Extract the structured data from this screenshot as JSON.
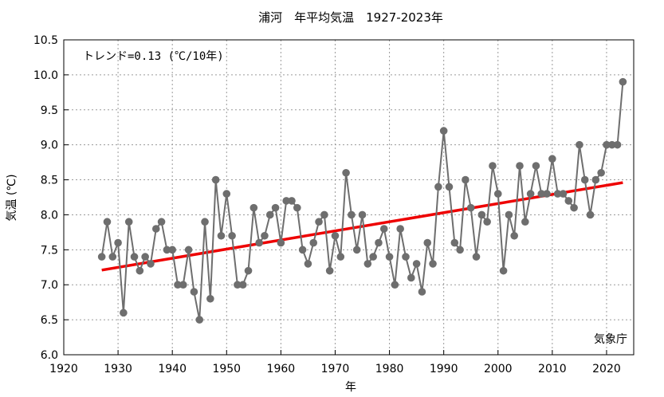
{
  "chart_data": {
    "type": "line",
    "title": "浦河　年平均気温　1927-2023年",
    "xlabel": "年",
    "ylabel": "気温 (℃)",
    "xlim": [
      1920,
      2025
    ],
    "ylim": [
      6.0,
      10.5
    ],
    "xticks": [
      1920,
      1930,
      1940,
      1950,
      1960,
      1970,
      1980,
      1990,
      2000,
      2010,
      2020
    ],
    "yticks": [
      "6.0",
      "6.5",
      "7.0",
      "7.5",
      "8.0",
      "8.5",
      "9.0",
      "9.5",
      "10.0",
      "10.5"
    ],
    "grid": true,
    "annotation": "トレンド=0.13 (℃/10年)",
    "source": "気象庁",
    "colors": {
      "series": "#6e6e6e",
      "trend": "#ee0000"
    },
    "series": [
      {
        "x": [
          1927,
          1928,
          1929,
          1930,
          1931,
          1932,
          1933,
          1934,
          1935,
          1936,
          1937,
          1938,
          1939,
          1940,
          1941,
          1942,
          1943,
          1944,
          1945,
          1946,
          1947,
          1948,
          1949,
          1950,
          1951,
          1952,
          1953,
          1954,
          1955,
          1956,
          1957,
          1958,
          1959,
          1960,
          1961,
          1962,
          1963,
          1964,
          1965,
          1966,
          1967,
          1968,
          1969,
          1970,
          1971,
          1972,
          1973,
          1974,
          1975,
          1976,
          1977,
          1978,
          1979,
          1980,
          1981,
          1982,
          1983,
          1984,
          1985,
          1986,
          1987,
          1988,
          1989,
          1990,
          1991,
          1992,
          1993,
          1994,
          1995,
          1996,
          1997,
          1998,
          1999,
          2000,
          2001,
          2002,
          2003,
          2004,
          2005,
          2006,
          2007,
          2008,
          2009,
          2010,
          2011,
          2012,
          2013,
          2014,
          2015,
          2016,
          2017,
          2018,
          2019,
          2020,
          2021,
          2022,
          2023
        ],
        "values": [
          7.4,
          7.9,
          7.4,
          7.6,
          6.6,
          7.9,
          7.4,
          7.2,
          7.4,
          7.3,
          7.8,
          7.9,
          7.5,
          7.5,
          7.0,
          7.0,
          7.5,
          6.9,
          6.5,
          7.9,
          6.8,
          8.5,
          7.7,
          8.3,
          7.7,
          7.0,
          7.0,
          7.2,
          8.1,
          7.6,
          7.7,
          8.0,
          8.1,
          7.6,
          8.2,
          8.2,
          8.1,
          7.5,
          7.3,
          7.6,
          7.9,
          8.0,
          7.2,
          7.7,
          7.4,
          8.6,
          8.0,
          7.5,
          8.0,
          7.3,
          7.4,
          7.6,
          7.8,
          7.4,
          7.0,
          7.8,
          7.4,
          7.1,
          7.3,
          6.9,
          7.6,
          7.3,
          8.4,
          9.2,
          8.4,
          7.6,
          7.5,
          8.5,
          8.1,
          7.4,
          8.0,
          7.9,
          8.7,
          8.3,
          7.2,
          8.0,
          7.7,
          8.7,
          7.9,
          8.3,
          8.7,
          8.3,
          8.3,
          8.8,
          8.3,
          8.3,
          8.2,
          8.1,
          9.0,
          8.5,
          8.0,
          8.5,
          8.6,
          9.0,
          9.0,
          9.0,
          9.9
        ]
      }
    ],
    "trend": {
      "x": [
        1927,
        2023
      ],
      "values": [
        7.21,
        8.46
      ]
    }
  }
}
